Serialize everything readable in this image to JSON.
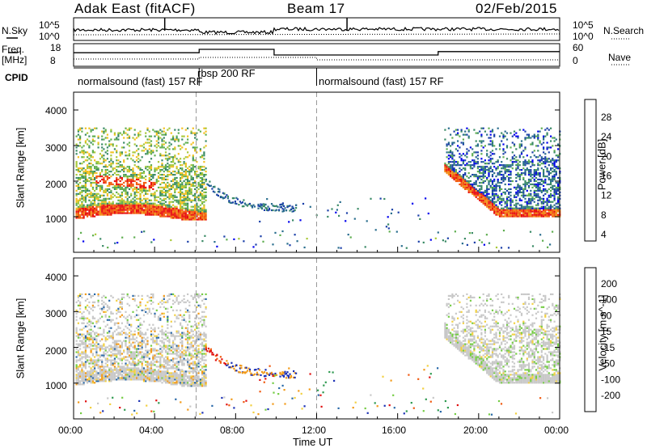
{
  "header": {
    "station": "Adak East (fitACF)",
    "beam": "Beam 17",
    "date": "02/Feb/2015"
  },
  "top_panels": {
    "nsky_label": "N.Sky",
    "nsearch_label": "N.Search",
    "freq_label": "Freq.",
    "freq_unit": "[MHz]",
    "nave_label": "Nave",
    "cpid_label": "CPID",
    "y_ticks_sky": [
      "10^5",
      "10^0"
    ],
    "y_ticks_freq": [
      "18",
      "8"
    ],
    "y_ticks_nave": [
      "60",
      "0"
    ],
    "cpid_segments": [
      {
        "label": "normalsound (fast) 157 RF",
        "start": 0,
        "end": 6.2
      },
      {
        "label": "rbsp 200 RF",
        "start": 6.2,
        "end": 12.0
      },
      {
        "label": "normalsound (fast) 157 RF",
        "start": 12.0,
        "end": 24.0
      }
    ]
  },
  "x_axis": {
    "label": "Time UT",
    "ticks": [
      "00:00",
      "04:00",
      "08:00",
      "12:00",
      "16:00",
      "20:00",
      "00:00"
    ]
  },
  "power_colorbar": {
    "label": "Power [dB]",
    "ticks": [
      "28",
      "24",
      "20",
      "16",
      "12",
      "8",
      "4"
    ],
    "colors": [
      "#0000ee",
      "#1a3fa8",
      "#2a6e8e",
      "#3a8a66",
      "#5fae50",
      "#a8c838",
      "#f2c020",
      "#f29018",
      "#f25a10",
      "#e81010"
    ]
  },
  "velocity_colorbar": {
    "label": "Velocity [m s^-1]",
    "ticks": [
      "200",
      "100",
      "50",
      "15",
      "-15",
      "-50",
      "-100",
      "-200"
    ],
    "colors": [
      "#1a2fb4",
      "#2868a8",
      "#2e9a50",
      "#74cc44",
      "#c8c8c8",
      "#f2d040",
      "#f29a18",
      "#f05a10",
      "#e01010"
    ]
  },
  "chart_data": [
    {
      "type": "heatmap",
      "name": "power",
      "xlabel": "Time UT",
      "ylabel": "Slant Range [km]",
      "xlim": [
        0,
        24
      ],
      "ylim": [
        0,
        4500
      ],
      "yticks": [
        1000,
        2000,
        3000,
        4000
      ],
      "colorbar": "Power [dB]",
      "clim": [
        0,
        30
      ]
    },
    {
      "type": "heatmap",
      "name": "velocity",
      "xlabel": "Time UT",
      "ylabel": "Slant Range [km]",
      "xlim": [
        0,
        24
      ],
      "ylim": [
        0,
        4500
      ],
      "yticks": [
        1000,
        2000,
        3000,
        4000
      ],
      "colorbar": "Velocity [m s^-1]",
      "clim": [
        -200,
        200
      ]
    },
    {
      "type": "line",
      "name": "frequency",
      "ylabel": "Freq. [MHz]",
      "ylim": [
        8,
        18
      ],
      "x": [
        0,
        6.2,
        6.2,
        9.9,
        9.9,
        18.0,
        18.0,
        24.0
      ],
      "y": [
        14,
        14,
        15.5,
        15.5,
        13,
        13,
        14.5,
        14.5
      ]
    }
  ]
}
